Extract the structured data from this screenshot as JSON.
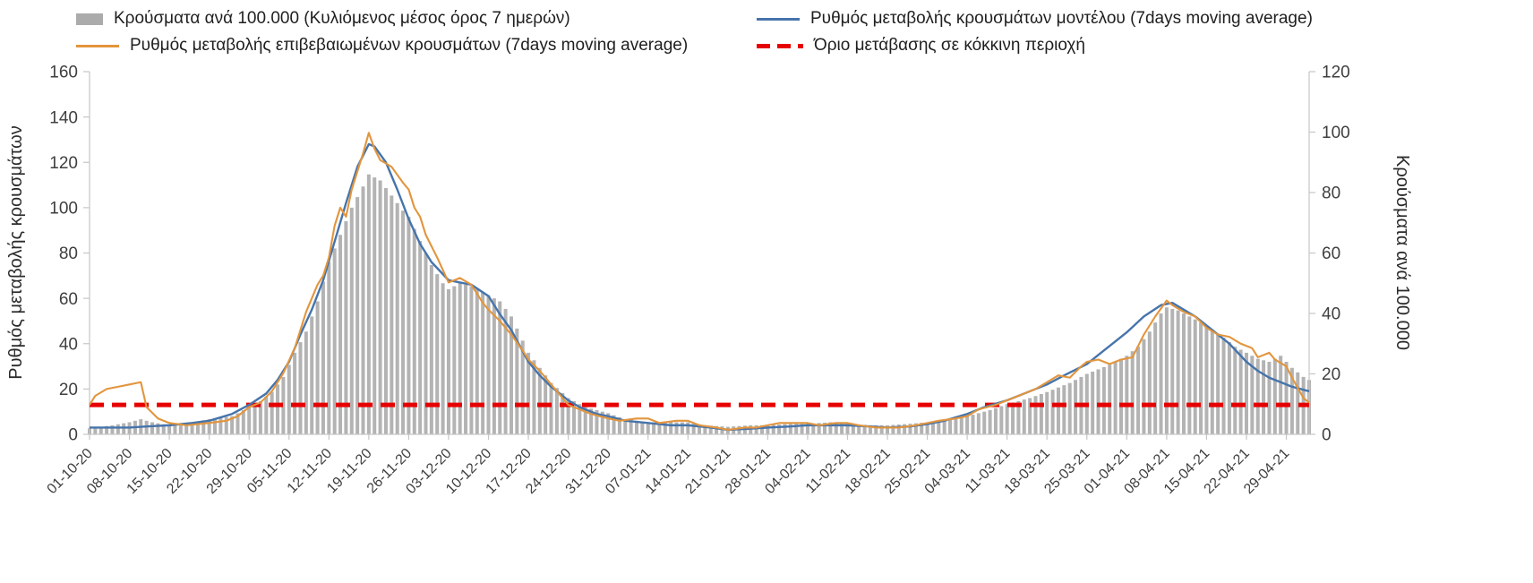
{
  "legend": {
    "bars": "Κρούσματα ανά 100.000 (Κυλιόμενος μέσος όρος 7 ημερών)",
    "model": "Ρυθμός μεταβολής κρουσμάτων μοντέλου (7days moving average)",
    "confirmed": "Ρυθμός μεταβολής επιβεβαιωμένων κρουσμάτων (7days moving average)",
    "threshold": "Όριο μετάβασης σε κόκκινη περιοχή"
  },
  "axes": {
    "left_label": "Ρυθμός μεταβολής κρουσμάτων",
    "right_label": "Κρούσματα ανά 100.000"
  },
  "chart_data": {
    "type": "composite",
    "title": "",
    "x_tick_labels": [
      "01-10-20",
      "08-10-20",
      "15-10-20",
      "22-10-20",
      "29-10-20",
      "05-11-20",
      "12-11-20",
      "19-11-20",
      "26-11-20",
      "03-12-20",
      "10-12-20",
      "17-12-20",
      "24-12-20",
      "31-12-20",
      "07-01-21",
      "14-01-21",
      "21-01-21",
      "28-01-21",
      "04-02-21",
      "11-02-21",
      "18-02-21",
      "25-02-21",
      "04-03-21",
      "11-03-21",
      "18-03-21",
      "25-03-21",
      "01-04-21",
      "08-04-21",
      "15-04-21",
      "22-04-21",
      "29-04-21"
    ],
    "days_per_tick": 7,
    "x_max_day": 214,
    "left_axis": {
      "label": "Ρυθμός μεταβολής κρουσμάτων",
      "min": 0,
      "max": 160,
      "step": 20,
      "ticks": [
        0,
        20,
        40,
        60,
        80,
        100,
        120,
        140,
        160
      ]
    },
    "right_axis": {
      "label": "Κρούσματα ανά 100.000",
      "min": 0,
      "max": 120,
      "step": 20,
      "ticks": [
        0,
        20,
        40,
        60,
        80,
        100,
        120
      ]
    },
    "grid": false,
    "legend_position": "top",
    "series": [
      {
        "name": "Κρούσματα ανά 100.000 (Κυλιόμενος μέσος όρος 7 ημερών)",
        "type": "bar",
        "axis": "right",
        "color": "#b3b3b3",
        "points": [
          [
            0,
            2
          ],
          [
            4,
            3
          ],
          [
            7,
            4
          ],
          [
            9,
            5
          ],
          [
            11,
            4
          ],
          [
            14,
            3
          ],
          [
            18,
            4
          ],
          [
            21,
            5
          ],
          [
            25,
            6
          ],
          [
            28,
            9
          ],
          [
            30,
            11
          ],
          [
            32,
            14
          ],
          [
            34,
            19
          ],
          [
            36,
            27
          ],
          [
            38,
            34
          ],
          [
            40,
            44
          ],
          [
            42,
            57
          ],
          [
            44,
            66
          ],
          [
            46,
            75
          ],
          [
            48,
            82
          ],
          [
            49,
            86
          ],
          [
            51,
            84
          ],
          [
            53,
            79
          ],
          [
            55,
            74
          ],
          [
            56,
            72
          ],
          [
            58,
            64
          ],
          [
            60,
            56
          ],
          [
            62,
            50
          ],
          [
            63,
            48
          ],
          [
            65,
            50
          ],
          [
            67,
            49
          ],
          [
            69,
            47
          ],
          [
            70,
            46
          ],
          [
            72,
            44
          ],
          [
            74,
            39
          ],
          [
            76,
            31
          ],
          [
            77,
            27
          ],
          [
            79,
            22
          ],
          [
            81,
            17
          ],
          [
            84,
            12
          ],
          [
            87,
            9
          ],
          [
            89,
            8
          ],
          [
            91,
            7
          ],
          [
            94,
            5
          ],
          [
            98,
            4
          ],
          [
            102,
            4
          ],
          [
            105,
            4
          ],
          [
            108,
            3
          ],
          [
            112,
            2.5
          ],
          [
            116,
            3
          ],
          [
            119,
            3
          ],
          [
            123,
            3.5
          ],
          [
            126,
            3.5
          ],
          [
            130,
            4
          ],
          [
            133,
            3.5
          ],
          [
            137,
            3
          ],
          [
            140,
            3
          ],
          [
            144,
            3.5
          ],
          [
            147,
            4
          ],
          [
            151,
            5
          ],
          [
            154,
            6
          ],
          [
            158,
            8
          ],
          [
            161,
            10
          ],
          [
            165,
            12
          ],
          [
            168,
            14
          ],
          [
            172,
            17
          ],
          [
            175,
            20
          ],
          [
            179,
            23
          ],
          [
            182,
            26
          ],
          [
            184,
            29
          ],
          [
            186,
            34
          ],
          [
            188,
            40
          ],
          [
            189,
            42
          ],
          [
            191,
            41
          ],
          [
            193,
            39
          ],
          [
            196,
            36
          ],
          [
            199,
            32
          ],
          [
            201,
            29
          ],
          [
            203,
            27
          ],
          [
            205,
            25
          ],
          [
            207,
            24
          ],
          [
            209,
            26
          ],
          [
            211,
            22
          ],
          [
            213,
            19
          ],
          [
            214,
            18
          ]
        ]
      },
      {
        "name": "Ρυθμός μεταβολής κρουσμάτων μοντέλου (7days moving average)",
        "type": "line",
        "axis": "left",
        "color": "#4674ab",
        "points": [
          [
            0,
            3
          ],
          [
            7,
            3
          ],
          [
            10,
            3.5
          ],
          [
            14,
            4
          ],
          [
            18,
            5
          ],
          [
            21,
            6
          ],
          [
            25,
            9
          ],
          [
            28,
            13
          ],
          [
            31,
            18
          ],
          [
            33,
            24
          ],
          [
            35,
            32
          ],
          [
            37,
            44
          ],
          [
            39,
            55
          ],
          [
            41,
            68
          ],
          [
            43,
            85
          ],
          [
            45,
            102
          ],
          [
            47,
            118
          ],
          [
            49,
            128
          ],
          [
            50,
            127
          ],
          [
            52,
            120
          ],
          [
            54,
            108
          ],
          [
            56,
            95
          ],
          [
            58,
            84
          ],
          [
            60,
            76
          ],
          [
            63,
            68
          ],
          [
            65,
            67
          ],
          [
            67,
            66
          ],
          [
            70,
            61
          ],
          [
            72,
            53
          ],
          [
            74,
            46
          ],
          [
            77,
            32
          ],
          [
            79,
            26
          ],
          [
            81,
            21
          ],
          [
            84,
            15
          ],
          [
            86,
            12
          ],
          [
            89,
            9
          ],
          [
            91,
            8
          ],
          [
            94,
            6
          ],
          [
            98,
            5
          ],
          [
            102,
            4
          ],
          [
            105,
            4
          ],
          [
            109,
            3
          ],
          [
            112,
            2
          ],
          [
            116,
            2.5
          ],
          [
            119,
            3
          ],
          [
            123,
            3.5
          ],
          [
            126,
            4
          ],
          [
            130,
            4
          ],
          [
            133,
            4
          ],
          [
            137,
            3.5
          ],
          [
            140,
            3
          ],
          [
            144,
            3.5
          ],
          [
            147,
            4.5
          ],
          [
            150,
            6
          ],
          [
            154,
            9
          ],
          [
            157,
            12
          ],
          [
            161,
            15
          ],
          [
            164,
            18
          ],
          [
            168,
            22
          ],
          [
            171,
            26
          ],
          [
            175,
            31
          ],
          [
            178,
            37
          ],
          [
            182,
            45
          ],
          [
            185,
            52
          ],
          [
            188,
            57
          ],
          [
            190,
            58
          ],
          [
            192,
            55
          ],
          [
            194,
            52
          ],
          [
            196,
            48
          ],
          [
            198,
            44
          ],
          [
            200,
            40
          ],
          [
            203,
            32
          ],
          [
            205,
            28
          ],
          [
            207,
            25
          ],
          [
            209,
            23
          ],
          [
            211,
            21
          ],
          [
            214,
            19
          ]
        ]
      },
      {
        "name": "Ρυθμός μεταβολής επιβεβαιωμένων κρουσμάτων (7days moving average)",
        "type": "line",
        "axis": "left",
        "color": "#e2953d",
        "points": [
          [
            0,
            13
          ],
          [
            1,
            17
          ],
          [
            3,
            20
          ],
          [
            5,
            21
          ],
          [
            7,
            22
          ],
          [
            9,
            23
          ],
          [
            10,
            12
          ],
          [
            12,
            7
          ],
          [
            14,
            5
          ],
          [
            17,
            4
          ],
          [
            21,
            5
          ],
          [
            24,
            6
          ],
          [
            26,
            8
          ],
          [
            28,
            12
          ],
          [
            30,
            14
          ],
          [
            32,
            19
          ],
          [
            34,
            27
          ],
          [
            36,
            38
          ],
          [
            38,
            54
          ],
          [
            40,
            66
          ],
          [
            41,
            70
          ],
          [
            42,
            78
          ],
          [
            43,
            92
          ],
          [
            44,
            100
          ],
          [
            45,
            96
          ],
          [
            46,
            108
          ],
          [
            47,
            116
          ],
          [
            48,
            124
          ],
          [
            49,
            133
          ],
          [
            50,
            126
          ],
          [
            51,
            121
          ],
          [
            53,
            118
          ],
          [
            55,
            111
          ],
          [
            56,
            108
          ],
          [
            57,
            100
          ],
          [
            58,
            96
          ],
          [
            59,
            88
          ],
          [
            61,
            78
          ],
          [
            63,
            67
          ],
          [
            65,
            69
          ],
          [
            67,
            66
          ],
          [
            69,
            58
          ],
          [
            70,
            55
          ],
          [
            72,
            50
          ],
          [
            74,
            44
          ],
          [
            76,
            37
          ],
          [
            77,
            33
          ],
          [
            79,
            28
          ],
          [
            81,
            22
          ],
          [
            83,
            16
          ],
          [
            84,
            13
          ],
          [
            86,
            11
          ],
          [
            88,
            9
          ],
          [
            91,
            7
          ],
          [
            93,
            6
          ],
          [
            96,
            7
          ],
          [
            98,
            7
          ],
          [
            100,
            5
          ],
          [
            103,
            6
          ],
          [
            105,
            6
          ],
          [
            107,
            4
          ],
          [
            110,
            3
          ],
          [
            112,
            2
          ],
          [
            115,
            3
          ],
          [
            117,
            3
          ],
          [
            119,
            4
          ],
          [
            121,
            5
          ],
          [
            124,
            5
          ],
          [
            126,
            5
          ],
          [
            128,
            4
          ],
          [
            131,
            5
          ],
          [
            133,
            5
          ],
          [
            135,
            4
          ],
          [
            138,
            3
          ],
          [
            140,
            3
          ],
          [
            142,
            3
          ],
          [
            145,
            4
          ],
          [
            147,
            5
          ],
          [
            149,
            6
          ],
          [
            152,
            7
          ],
          [
            154,
            8
          ],
          [
            156,
            11
          ],
          [
            159,
            13
          ],
          [
            161,
            15
          ],
          [
            163,
            17
          ],
          [
            166,
            20
          ],
          [
            168,
            23
          ],
          [
            170,
            26
          ],
          [
            172,
            25
          ],
          [
            174,
            30
          ],
          [
            175,
            32
          ],
          [
            177,
            33
          ],
          [
            179,
            31
          ],
          [
            181,
            33
          ],
          [
            183,
            34
          ],
          [
            185,
            44
          ],
          [
            187,
            52
          ],
          [
            189,
            59
          ],
          [
            190,
            57
          ],
          [
            192,
            54
          ],
          [
            194,
            52
          ],
          [
            196,
            47
          ],
          [
            198,
            44
          ],
          [
            200,
            43
          ],
          [
            202,
            40
          ],
          [
            204,
            38
          ],
          [
            205,
            34
          ],
          [
            207,
            36
          ],
          [
            208,
            33
          ],
          [
            210,
            30
          ],
          [
            211,
            25
          ],
          [
            213,
            16
          ],
          [
            214,
            14
          ]
        ]
      },
      {
        "name": "Όριο μετάβασης σε κόκκινη περιοχή",
        "type": "threshold",
        "axis": "left",
        "color": "#e60000",
        "value": 13
      }
    ]
  }
}
